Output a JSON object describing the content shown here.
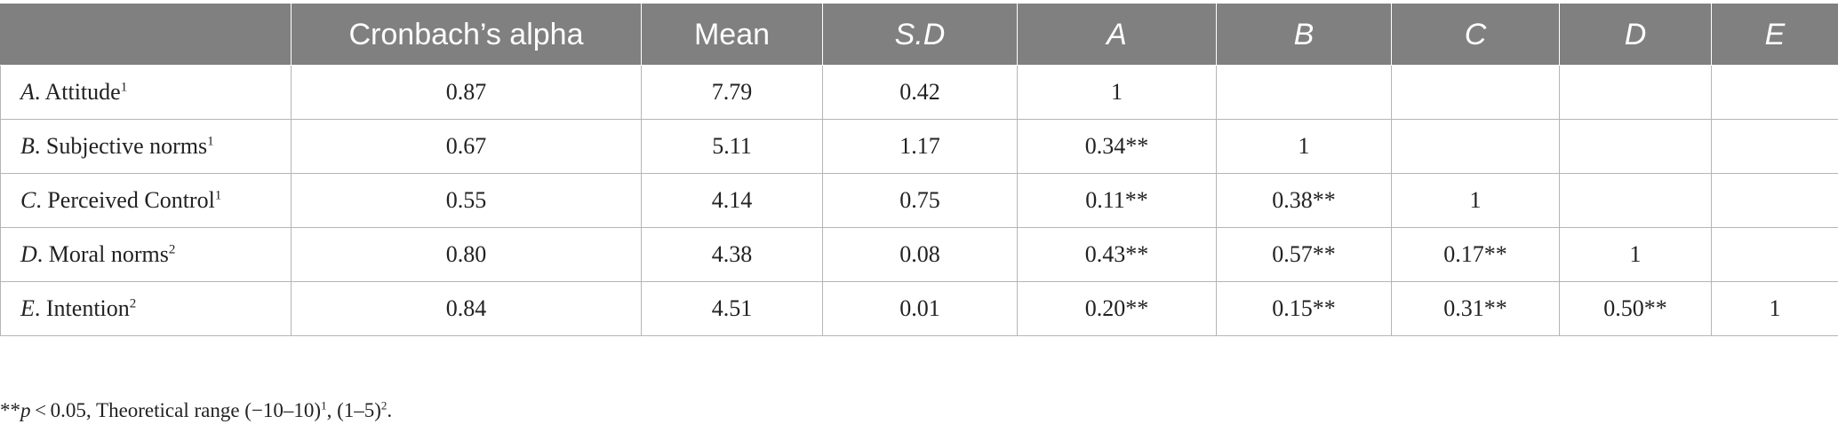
{
  "table": {
    "headers": [
      "",
      "Cronbach’s alpha",
      "Mean",
      "S.D",
      "A",
      "B",
      "C",
      "D",
      "E"
    ],
    "rows": [
      {
        "letter": "A",
        "name": "Attitude",
        "sup": "1",
        "cells": [
          "0.87",
          "7.79",
          "0.42",
          "1",
          "",
          "",
          "",
          ""
        ]
      },
      {
        "letter": "B",
        "name": "Subjective norms",
        "sup": "1",
        "cells": [
          "0.67",
          "5.11",
          "1.17",
          "0.34**",
          "1",
          "",
          "",
          ""
        ]
      },
      {
        "letter": "C",
        "name": "Perceived Control",
        "sup": "1",
        "cells": [
          "0.55",
          "4.14",
          "0.75",
          "0.11**",
          "0.38**",
          "1",
          "",
          ""
        ]
      },
      {
        "letter": "D",
        "name": "Moral norms",
        "sup": "2",
        "cells": [
          "0.80",
          "4.38",
          "0.08",
          "0.43**",
          "0.57**",
          "0.17**",
          "1",
          ""
        ]
      },
      {
        "letter": "E",
        "name": "Intention",
        "sup": "2",
        "cells": [
          "0.84",
          "4.51",
          "0.01",
          "0.20**",
          "0.15**",
          "0.31**",
          "0.50**",
          "1"
        ]
      }
    ]
  },
  "footnote": {
    "stars": "**",
    "p": "p",
    "text_1": " < 0.05, Theoretical range (−10–10)",
    "sup_1": "1",
    "text_2": ", (1–5)",
    "sup_2": "2",
    "text_3": "."
  }
}
